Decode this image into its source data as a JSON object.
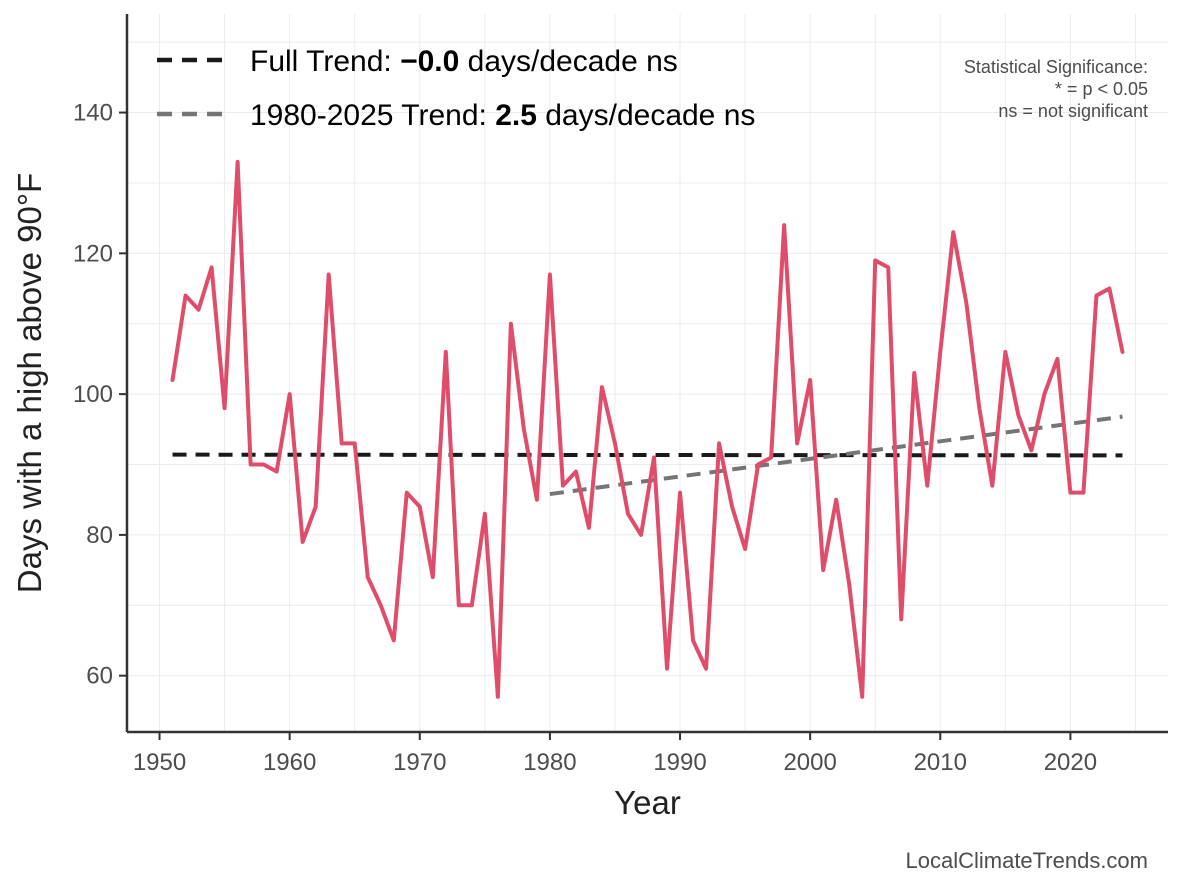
{
  "chart_data": {
    "type": "line",
    "x_label": "Year",
    "y_label": "Days with a high above 90°F",
    "xlim": [
      1947.5,
      2027.5
    ],
    "ylim": [
      52,
      154
    ],
    "x_ticks": [
      1950,
      1960,
      1970,
      1980,
      1990,
      2000,
      2010,
      2020
    ],
    "y_ticks": [
      60,
      80,
      100,
      120,
      140
    ],
    "grid": true,
    "series": [
      {
        "color": "#e04d6b",
        "x": [
          1951,
          1952,
          1953,
          1954,
          1955,
          1956,
          1957,
          1958,
          1959,
          1960,
          1961,
          1962,
          1963,
          1964,
          1965,
          1966,
          1967,
          1968,
          1969,
          1970,
          1971,
          1972,
          1973,
          1974,
          1975,
          1976,
          1977,
          1978,
          1979,
          1980,
          1981,
          1982,
          1983,
          1984,
          1985,
          1986,
          1987,
          1988,
          1989,
          1990,
          1991,
          1992,
          1993,
          1994,
          1995,
          1996,
          1997,
          1998,
          1999,
          2000,
          2001,
          2002,
          2003,
          2004,
          2005,
          2006,
          2007,
          2008,
          2009,
          2010,
          2011,
          2012,
          2013,
          2014,
          2015,
          2016,
          2017,
          2018,
          2019,
          2020,
          2021,
          2022,
          2023,
          2024
        ],
        "values": [
          102,
          114,
          112,
          118,
          98,
          133,
          90,
          90,
          89,
          100,
          79,
          84,
          117,
          93,
          93,
          74,
          70,
          65,
          86,
          84,
          74,
          106,
          70,
          70,
          83,
          57,
          110,
          95,
          85,
          117,
          87,
          89,
          81,
          101,
          93,
          83,
          80,
          91,
          61,
          86,
          65,
          61,
          93,
          84,
          78,
          90,
          91,
          124,
          93,
          102,
          75,
          85,
          73,
          57,
          119,
          118,
          68,
          103,
          87,
          106,
          123,
          113,
          98,
          87,
          106,
          97,
          92,
          100,
          105,
          86,
          86,
          114,
          115,
          106
        ]
      }
    ],
    "trend_lines": [
      {
        "legend_prefix": "Full Trend: ",
        "legend_value": "−0.0",
        "legend_suffix": " days/decade ns",
        "color": "#1a1a1a",
        "x": [
          1951,
          2024
        ],
        "y": [
          91.4,
          91.3
        ]
      },
      {
        "legend_prefix": "1980-2025 Trend: ",
        "legend_value": "2.5",
        "legend_suffix": " days/decade ns",
        "color": "#757575",
        "x": [
          1980,
          2024
        ],
        "y": [
          85.8,
          96.8
        ]
      }
    ],
    "legend_position": "top-left",
    "annotation": {
      "lines": [
        "Statistical Significance:",
        "* = p < 0.05",
        "ns = not significant"
      ]
    }
  },
  "credit": "LocalClimateTrends.com"
}
